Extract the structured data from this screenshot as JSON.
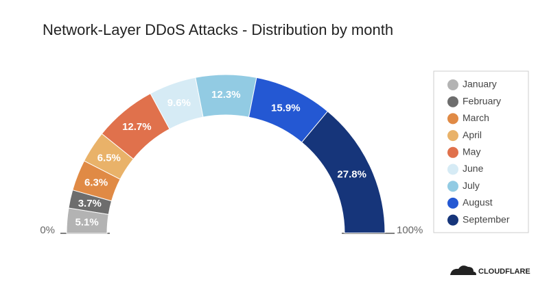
{
  "chart_data": {
    "type": "half-donut",
    "title": "Network-Layer DDoS Attacks - Distribution by month",
    "categories": [
      "January",
      "February",
      "March",
      "April",
      "May",
      "June",
      "July",
      "August",
      "September"
    ],
    "values": [
      5.1,
      3.7,
      6.3,
      6.5,
      12.7,
      9.6,
      12.3,
      15.9,
      27.8
    ],
    "value_labels": [
      "5.1%",
      "3.7%",
      "6.3%",
      "6.5%",
      "12.7%",
      "9.6%",
      "12.3%",
      "15.9%",
      "27.8%"
    ],
    "colors": [
      "#b3b3b3",
      "#6d6d6d",
      "#e08a45",
      "#e9b269",
      "#e0714c",
      "#d6ebf5",
      "#92cbe3",
      "#2458d3",
      "#16357a"
    ],
    "scale": [
      {
        "value": 0,
        "label": "0%"
      },
      {
        "value": 100,
        "label": "100%"
      }
    ],
    "legend": "right",
    "footer_brand": "CLOUDFLARE"
  }
}
